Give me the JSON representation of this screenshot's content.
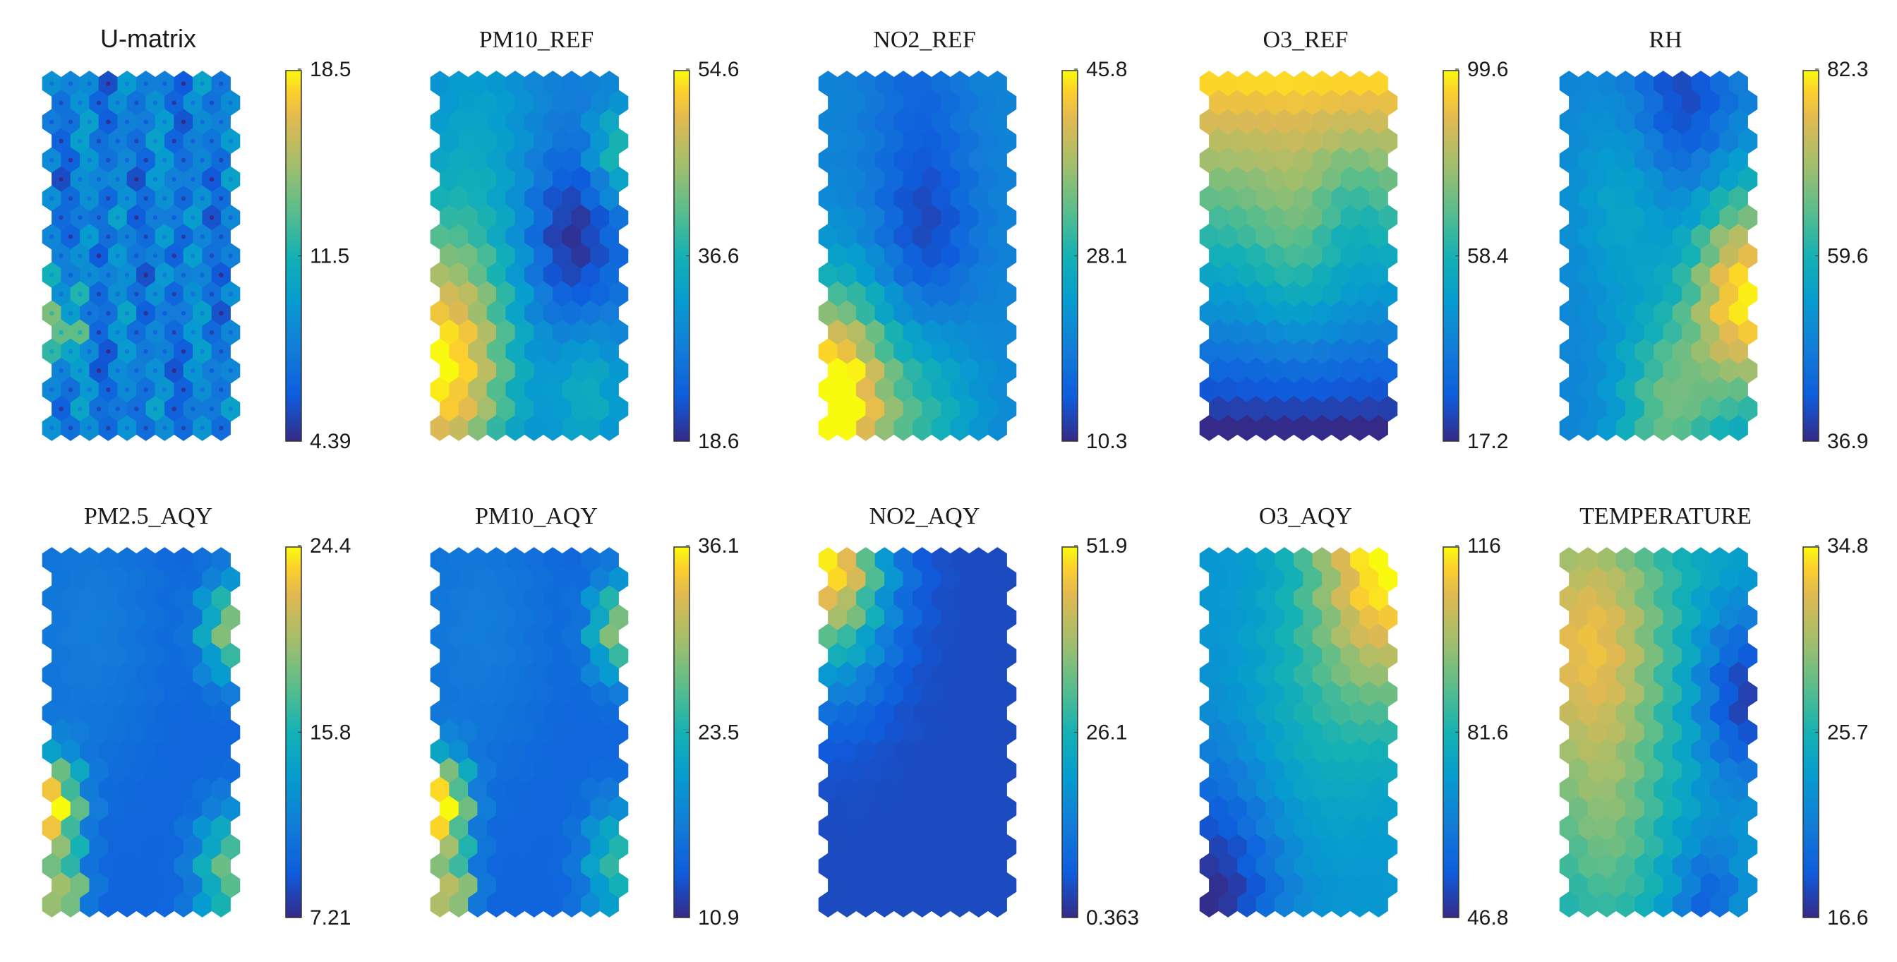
{
  "figure": {
    "panels": [
      {
        "title": "U-matrix",
        "title_font": "sans",
        "cmin": "4.39",
        "cmid": "11.5",
        "cmax": "18.5",
        "seed": 3
      },
      {
        "title": "PM10_REF",
        "title_font": "serif",
        "cmin": "18.6",
        "cmid": "36.6",
        "cmax": "54.6",
        "seed": 11
      },
      {
        "title": "NO2_REF",
        "title_font": "serif",
        "cmin": "10.3",
        "cmid": "28.1",
        "cmax": "45.8",
        "seed": 17
      },
      {
        "title": "O3_REF",
        "title_font": "serif",
        "cmin": "17.2",
        "cmid": "58.4",
        "cmax": "99.6",
        "seed": 23
      },
      {
        "title": "RH",
        "title_font": "serif",
        "cmin": "36.9",
        "cmid": "59.6",
        "cmax": "82.3",
        "seed": 29
      },
      {
        "title": "PM2.5_AQY",
        "title_font": "serif",
        "cmin": "7.21",
        "cmid": "15.8",
        "cmax": "24.4",
        "seed": 31
      },
      {
        "title": "PM10_AQY",
        "title_font": "serif",
        "cmin": "10.9",
        "cmid": "23.5",
        "cmax": "36.1",
        "seed": 37
      },
      {
        "title": "NO2_AQY",
        "title_font": "serif",
        "cmin": "0.363",
        "cmid": "26.1",
        "cmax": "51.9",
        "seed": 41
      },
      {
        "title": "O3_AQY",
        "title_font": "serif",
        "cmin": "46.8",
        "cmid": "81.6",
        "cmax": "116",
        "seed": 43
      },
      {
        "title": "TEMPERATURE",
        "title_font": "serif",
        "cmin": "16.6",
        "cmid": "25.7",
        "cmax": "34.8",
        "seed": 47
      }
    ]
  },
  "chart_data": [
    {
      "type": "heatmap",
      "title": "U-matrix",
      "colorbar_ticks": [
        4.39,
        11.5,
        18.5
      ],
      "clim": [
        4.39,
        18.5
      ],
      "colormap": "parula",
      "grid": "hexagonal",
      "pattern": "mostly low blue values with scattered cyan cells; small yellow-orange spots on left edge middle"
    },
    {
      "type": "heatmap",
      "title": "PM10_REF",
      "colorbar_ticks": [
        18.6,
        36.6,
        54.6
      ],
      "clim": [
        18.6,
        54.6
      ],
      "colormap": "parula",
      "grid": "hexagonal",
      "pattern": "high (yellow-orange) at lower-left, dark blue diagonal band from top toward right, green at right edge top"
    },
    {
      "type": "heatmap",
      "title": "NO2_REF",
      "colorbar_ticks": [
        10.3,
        28.1,
        45.8
      ],
      "clim": [
        10.3,
        45.8
      ],
      "colormap": "parula",
      "grid": "hexagonal",
      "pattern": "dark blue center-right, high (yellow) at lower-left, cyan-green lower region"
    },
    {
      "type": "heatmap",
      "title": "O3_REF",
      "colorbar_ticks": [
        17.2,
        58.4,
        99.6
      ],
      "clim": [
        17.2,
        99.6
      ],
      "colormap": "parula",
      "grid": "hexagonal",
      "pattern": "yellow top, orange-green middle, decreasing to dark blue at bottom"
    },
    {
      "type": "heatmap",
      "title": "RH",
      "colorbar_ticks": [
        36.9,
        59.6,
        82.3
      ],
      "clim": [
        36.9,
        82.3
      ],
      "colormap": "parula",
      "grid": "hexagonal",
      "pattern": "dark blue top, blue-cyan middle, yellow-orange right side and bottom"
    },
    {
      "type": "heatmap",
      "title": "PM2.5_AQY",
      "colorbar_ticks": [
        7.21,
        15.8,
        24.4
      ],
      "clim": [
        7.21,
        24.4
      ],
      "colormap": "parula",
      "grid": "hexagonal",
      "pattern": "mostly dark blue, yellow-orange at left edge lower, green/yellow patches at right edge and bottom-right"
    },
    {
      "type": "heatmap",
      "title": "PM10_AQY",
      "colorbar_ticks": [
        10.9,
        23.5,
        36.1
      ],
      "clim": [
        10.9,
        36.1
      ],
      "colormap": "parula",
      "grid": "hexagonal",
      "pattern": "mostly dark blue, yellow at left edge lower and bottom-left, green at right edge"
    },
    {
      "type": "heatmap",
      "title": "NO2_AQY",
      "colorbar_ticks": [
        0.363,
        26.1,
        51.9
      ],
      "clim": [
        0.363,
        51.9
      ],
      "colormap": "parula",
      "grid": "hexagonal",
      "pattern": "yellow-green top-left corner, dark blue elsewhere"
    },
    {
      "type": "heatmap",
      "title": "O3_AQY",
      "colorbar_ticks": [
        46.8,
        81.6,
        116
      ],
      "clim": [
        46.8,
        116
      ],
      "colormap": "parula",
      "grid": "hexagonal",
      "pattern": "yellow top-right, cyan-blue center, dark blue bottom-left"
    },
    {
      "type": "heatmap",
      "title": "TEMPERATURE",
      "colorbar_ticks": [
        16.6,
        25.7,
        34.8
      ],
      "clim": [
        16.6,
        34.8
      ],
      "colormap": "parula",
      "grid": "hexagonal",
      "pattern": "orange-yellow upper-left, green center, dark blue right edge and bottom"
    }
  ]
}
